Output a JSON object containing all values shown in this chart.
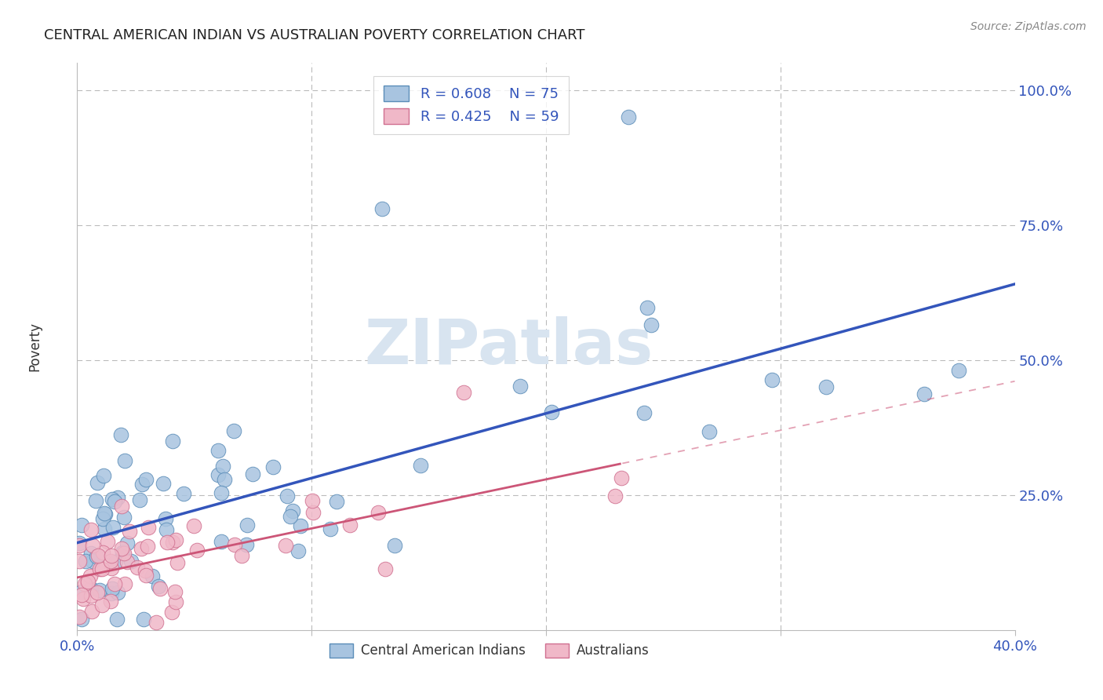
{
  "title": "CENTRAL AMERICAN INDIAN VS AUSTRALIAN POVERTY CORRELATION CHART",
  "source": "Source: ZipAtlas.com",
  "ylabel_label": "Poverty",
  "xlim": [
    0.0,
    0.4
  ],
  "ylim": [
    0.0,
    1.05
  ],
  "xtick_vals": [
    0.0,
    0.1,
    0.2,
    0.3,
    0.4
  ],
  "xtick_labels": [
    "0.0%",
    "",
    "",
    "",
    "40.0%"
  ],
  "ytick_vals": [
    0.0,
    0.25,
    0.5,
    0.75,
    1.0
  ],
  "ytick_labels": [
    "",
    "25.0%",
    "50.0%",
    "75.0%",
    "100.0%"
  ],
  "blue_R": "0.608",
  "blue_N": "75",
  "pink_R": "0.425",
  "pink_N": "59",
  "blue_scatter_color": "#a8c4e0",
  "blue_edge_color": "#5b8db8",
  "blue_line_color": "#3355bb",
  "pink_scatter_color": "#f0b8c8",
  "pink_edge_color": "#d07090",
  "pink_line_color": "#cc5577",
  "legend_label_blue": "Central American Indians",
  "legend_label_pink": "Australians",
  "background_color": "#ffffff",
  "grid_color": "#bbbbbb",
  "title_color": "#222222",
  "tick_color": "#3355bb",
  "watermark_color": "#d8e4f0",
  "source_color": "#888888"
}
